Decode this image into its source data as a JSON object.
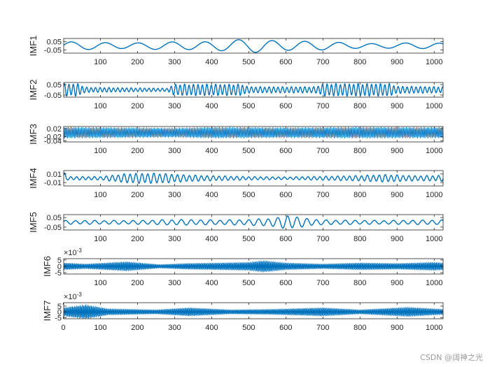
{
  "chart_data": [
    {
      "type": "line",
      "ylabel": "IMF1",
      "xlim": [
        1,
        1024
      ],
      "ylim": [
        -0.09,
        0.09
      ],
      "ytick_labels": [
        "0.05",
        "-0.05"
      ],
      "ytick_values": [
        0.05,
        -0.05
      ],
      "xtick_labels": [
        "100",
        "200",
        "300",
        "400",
        "500",
        "600",
        "700",
        "800",
        "900",
        "1000"
      ],
      "exponent": "",
      "signal": {
        "base_period": 90,
        "envelope": [
          [
            1,
            0.05
          ],
          [
            200,
            0.04
          ],
          [
            300,
            0.05
          ],
          [
            450,
            0.07
          ],
          [
            520,
            0.085
          ],
          [
            600,
            0.07
          ],
          [
            700,
            0.05
          ],
          [
            850,
            0.03
          ],
          [
            1024,
            0.04
          ]
        ]
      },
      "color": "#0072BD"
    },
    {
      "type": "line",
      "ylabel": "IMF2",
      "xlim": [
        1,
        1024
      ],
      "ylim": [
        -0.07,
        0.07
      ],
      "ytick_labels": [
        "0.05",
        "-0.05"
      ],
      "ytick_values": [
        0.05,
        -0.05
      ],
      "xtick_labels": [
        "100",
        "200",
        "300",
        "400",
        "500",
        "600",
        "700",
        "800",
        "900",
        "1000"
      ],
      "exponent": "",
      "signal": {
        "base_period": 12,
        "envelope": [
          [
            1,
            0.06
          ],
          [
            40,
            0.06
          ],
          [
            60,
            0.025
          ],
          [
            280,
            0.015
          ],
          [
            300,
            0.055
          ],
          [
            480,
            0.055
          ],
          [
            500,
            0.03
          ],
          [
            680,
            0.03
          ],
          [
            700,
            0.06
          ],
          [
            880,
            0.06
          ],
          [
            900,
            0.035
          ],
          [
            1024,
            0.03
          ]
        ]
      },
      "color": "#0072BD"
    },
    {
      "type": "line",
      "ylabel": "IMF3",
      "xlim": [
        1,
        1024
      ],
      "ylim": [
        -0.045,
        0.03
      ],
      "ytick_labels": [
        "0.02",
        "-0.02",
        "-0.04"
      ],
      "ytick_values": [
        0.02,
        -0.02,
        -0.04
      ],
      "xtick_labels": [
        "100",
        "200",
        "300",
        "400",
        "500",
        "600",
        "700",
        "800",
        "900",
        "1000"
      ],
      "exponent": "",
      "signal": {
        "base_period": 4,
        "envelope": [
          [
            1,
            0.028
          ],
          [
            300,
            0.024
          ],
          [
            400,
            0.028
          ],
          [
            600,
            0.026
          ],
          [
            800,
            0.028
          ],
          [
            1024,
            0.027
          ]
        ]
      },
      "color": "#0072BD"
    },
    {
      "type": "line",
      "ylabel": "IMF4",
      "xlim": [
        1,
        1024
      ],
      "ylim": [
        -0.018,
        0.018
      ],
      "ytick_labels": [
        "0.01",
        "-0.01"
      ],
      "ytick_values": [
        0.01,
        -0.01
      ],
      "xtick_labels": [
        "100",
        "200",
        "300",
        "400",
        "500",
        "600",
        "700",
        "800",
        "900",
        "1000"
      ],
      "exponent": "",
      "signal": {
        "base_period": 16,
        "envelope": [
          [
            1,
            0.016
          ],
          [
            10,
            0.004
          ],
          [
            100,
            0.004
          ],
          [
            180,
            0.012
          ],
          [
            260,
            0.012
          ],
          [
            330,
            0.008
          ],
          [
            400,
            0.006
          ],
          [
            500,
            0.004
          ],
          [
            600,
            0.003
          ],
          [
            780,
            0.006
          ],
          [
            870,
            0.009
          ],
          [
            950,
            0.006
          ],
          [
            1024,
            0.007
          ]
        ]
      },
      "color": "#0072BD"
    },
    {
      "type": "line",
      "ylabel": "IMF5",
      "xlim": [
        1,
        1024
      ],
      "ylim": [
        -0.08,
        0.08
      ],
      "ytick_labels": [
        "0.05",
        "-0.05"
      ],
      "ytick_values": [
        0.05,
        -0.05
      ],
      "xtick_labels": [
        "100",
        "200",
        "300",
        "400",
        "500",
        "600",
        "700",
        "800",
        "900",
        "1000"
      ],
      "exponent": "",
      "signal": {
        "base_period": 26,
        "envelope": [
          [
            1,
            0.02
          ],
          [
            200,
            0.02
          ],
          [
            300,
            0.03
          ],
          [
            420,
            0.025
          ],
          [
            500,
            0.03
          ],
          [
            580,
            0.05
          ],
          [
            605,
            0.08
          ],
          [
            640,
            0.05
          ],
          [
            700,
            0.025
          ],
          [
            850,
            0.02
          ],
          [
            1024,
            0.025
          ]
        ]
      },
      "color": "#0072BD"
    },
    {
      "type": "line",
      "ylabel": "IMF6",
      "xlim": [
        1,
        1024
      ],
      "ylim": [
        -6,
        6
      ],
      "ytick_labels": [
        "5",
        "0",
        "-5"
      ],
      "ytick_values": [
        5,
        0,
        -5
      ],
      "xtick_labels": [
        "100",
        "200",
        "300",
        "400",
        "500",
        "600",
        "700",
        "800",
        "900",
        "1000"
      ],
      "exponent": "10",
      "exponent_power": "-3",
      "signal": {
        "base_period": 3,
        "envelope": [
          [
            1,
            3
          ],
          [
            60,
            2
          ],
          [
            170,
            4
          ],
          [
            260,
            1.5
          ],
          [
            330,
            2.5
          ],
          [
            420,
            3
          ],
          [
            500,
            3.5
          ],
          [
            540,
            5
          ],
          [
            600,
            3
          ],
          [
            700,
            2
          ],
          [
            800,
            3
          ],
          [
            900,
            2.5
          ],
          [
            1000,
            3.5
          ],
          [
            1024,
            3
          ]
        ]
      },
      "color": "#0072BD"
    },
    {
      "type": "line",
      "ylabel": "IMF7",
      "xlim": [
        1,
        1024
      ],
      "ylim": [
        -6,
        8
      ],
      "ytick_labels": [
        "5",
        "0",
        "-5"
      ],
      "ytick_values": [
        5,
        0,
        -5
      ],
      "xtick_labels": [
        "0",
        "100",
        "200",
        "300",
        "400",
        "500",
        "600",
        "700",
        "800",
        "900",
        "1000"
      ],
      "exponent": "10",
      "exponent_power": "-3",
      "signal": {
        "base_period": 3,
        "envelope": [
          [
            1,
            4
          ],
          [
            60,
            7
          ],
          [
            120,
            3
          ],
          [
            250,
            2
          ],
          [
            340,
            4
          ],
          [
            450,
            2
          ],
          [
            560,
            2.5
          ],
          [
            700,
            4
          ],
          [
            800,
            2
          ],
          [
            930,
            4.5
          ],
          [
            1024,
            2.5
          ]
        ]
      },
      "color": "#0072BD"
    }
  ],
  "watermark": "CSDN @阔神之光"
}
